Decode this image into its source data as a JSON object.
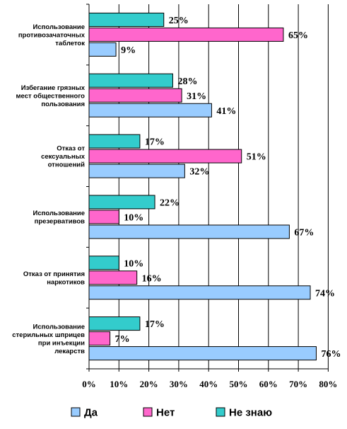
{
  "chart_data": {
    "type": "bar",
    "orientation": "horizontal",
    "categories": [
      [
        "Использование",
        "противозачаточных",
        "таблеток"
      ],
      [
        "Избегание грязных",
        "мест общественного",
        "пользования"
      ],
      [
        "Отказ от",
        "сексуальных",
        "отношений"
      ],
      [
        "Использование",
        "презервативов"
      ],
      [
        "Отказ от принятия",
        "наркотиков"
      ],
      [
        "Использование",
        "стерильных шприцев",
        "при инъекции",
        "лекарств"
      ]
    ],
    "series": [
      {
        "name": "Не знаю",
        "color": "#33cccc",
        "values": [
          25,
          28,
          17,
          22,
          10,
          17
        ],
        "labels": [
          "25%",
          "28%",
          "17%",
          "22%",
          "10%",
          "17%"
        ]
      },
      {
        "name": "Нет",
        "color": "#ff66cc",
        "values": [
          65,
          31,
          51,
          10,
          16,
          7
        ],
        "labels": [
          "65%",
          "31%",
          "51%",
          "10%",
          "16%",
          "7%"
        ]
      },
      {
        "name": "Да",
        "color": "#99ccff",
        "values": [
          9,
          41,
          32,
          67,
          74,
          76
        ],
        "labels": [
          "9%",
          "41%",
          "32%",
          "67%",
          "74%",
          "76%"
        ]
      }
    ],
    "x_ticks": [
      "0%",
      "10%",
      "20%",
      "30%",
      "40%",
      "50%",
      "60%",
      "70%",
      "80%"
    ],
    "xlim": [
      0,
      80
    ],
    "grid": true,
    "legend": {
      "placement": "bottom",
      "items": [
        {
          "name": "Да",
          "color": "#99ccff"
        },
        {
          "name": "Нет",
          "color": "#ff66cc"
        },
        {
          "name": "Не знаю",
          "color": "#33cccc"
        }
      ]
    }
  }
}
